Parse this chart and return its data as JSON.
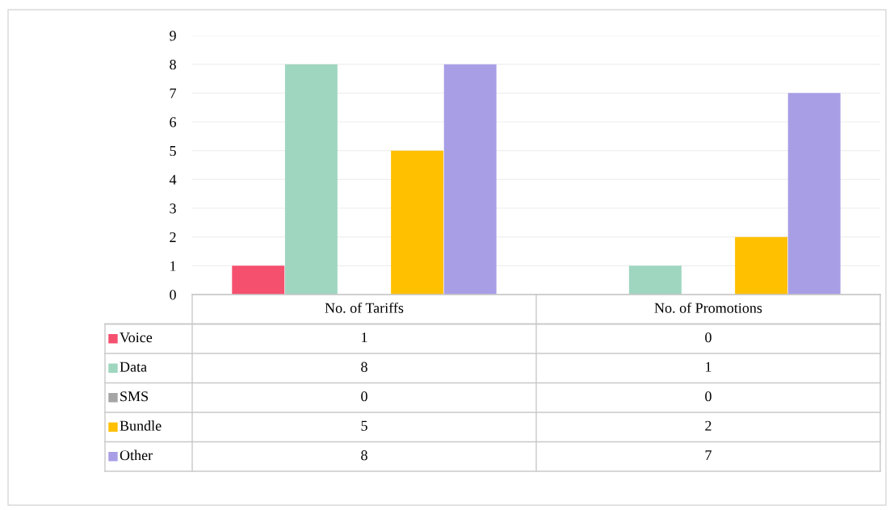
{
  "chart_data": {
    "type": "bar",
    "categories": [
      "No. of Tariffs",
      "No. of Promotions"
    ],
    "series": [
      {
        "name": "Voice",
        "color": "#f5506e",
        "values": [
          1,
          0
        ]
      },
      {
        "name": "Data",
        "color": "#9fd6c0",
        "values": [
          8,
          1
        ]
      },
      {
        "name": "SMS",
        "color": "#a5a5a5",
        "values": [
          0,
          0
        ]
      },
      {
        "name": "Bundle",
        "color": "#ffc000",
        "values": [
          5,
          2
        ]
      },
      {
        "name": "Other",
        "color": "#a89ee6",
        "values": [
          8,
          7
        ]
      }
    ],
    "ylim": [
      0,
      9
    ],
    "yticks": [
      0,
      1,
      2,
      3,
      4,
      5,
      6,
      7,
      8,
      9
    ],
    "grid": "y",
    "legend": "bottom",
    "data_labels": true
  }
}
